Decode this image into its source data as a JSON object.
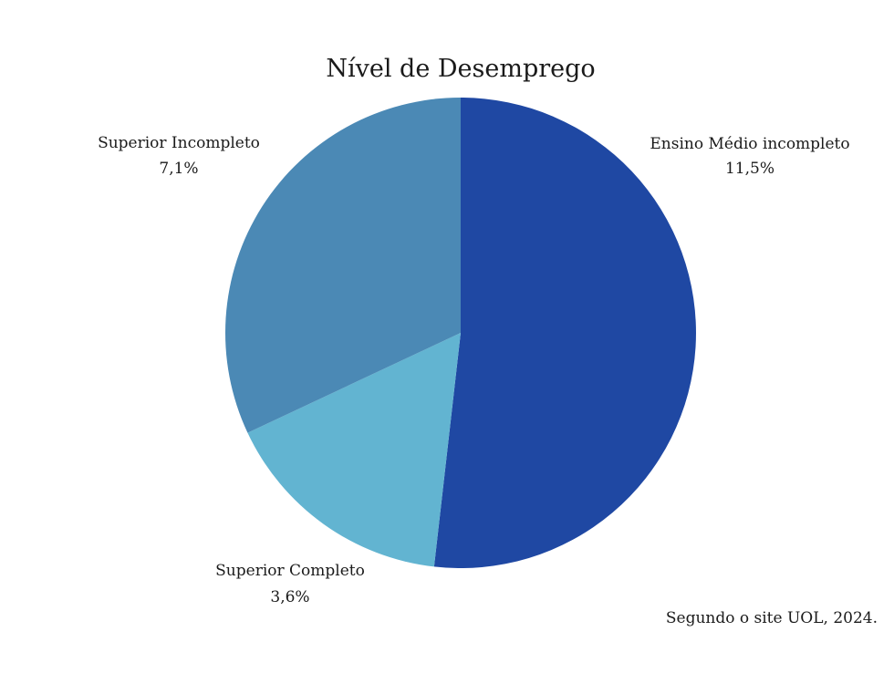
{
  "chart_data": {
    "type": "pie",
    "title": "Nível de Desemprego",
    "slices": [
      {
        "label": "Ensino Médio incompleto",
        "value": 11.5,
        "value_label": "11,5%",
        "color": "#1f48a3"
      },
      {
        "label": "Superior Completo",
        "value": 3.6,
        "value_label": "3,6%",
        "color": "#62b4d1"
      },
      {
        "label": "Superior Incompleto",
        "value": 7.1,
        "value_label": "7,1%",
        "color": "#4b89b5"
      }
    ],
    "start_angle": "12 o'clock",
    "direction": "clockwise",
    "legend": "none",
    "source": "Segundo o site UOL, 2024."
  }
}
